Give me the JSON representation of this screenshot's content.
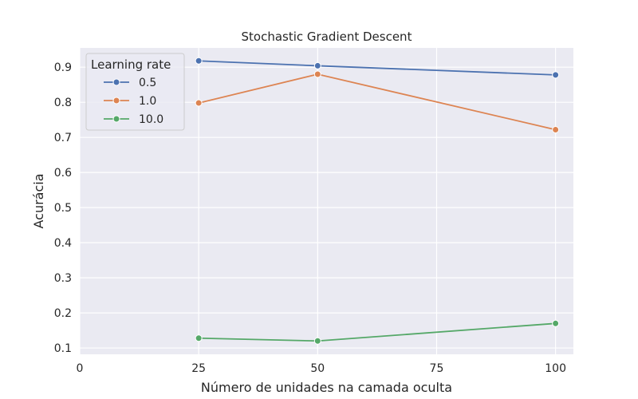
{
  "chart_data": {
    "type": "line",
    "title": "Stochastic Gradient Descent",
    "xlabel": "Número de unidades na camada oculta",
    "ylabel": "Acurácia",
    "x": [
      25,
      50,
      100
    ],
    "xlim": [
      0,
      103.75
    ],
    "ylim": [
      0.082,
      0.955
    ],
    "xticks": [
      0,
      25,
      50,
      75,
      100
    ],
    "yticks": [
      0.1,
      0.2,
      0.3,
      0.4,
      0.5,
      0.6,
      0.7,
      0.8,
      0.9
    ],
    "grid": true,
    "legend": {
      "title": "Learning rate",
      "placement": "top-left"
    },
    "series": [
      {
        "name": "0.5",
        "values": [
          0.918,
          0.904,
          0.878
        ],
        "color": "#4c72b0"
      },
      {
        "name": "1.0",
        "values": [
          0.798,
          0.88,
          0.722
        ],
        "color": "#dd8452"
      },
      {
        "name": "10.0",
        "values": [
          0.128,
          0.12,
          0.17
        ],
        "color": "#55a868"
      }
    ]
  }
}
